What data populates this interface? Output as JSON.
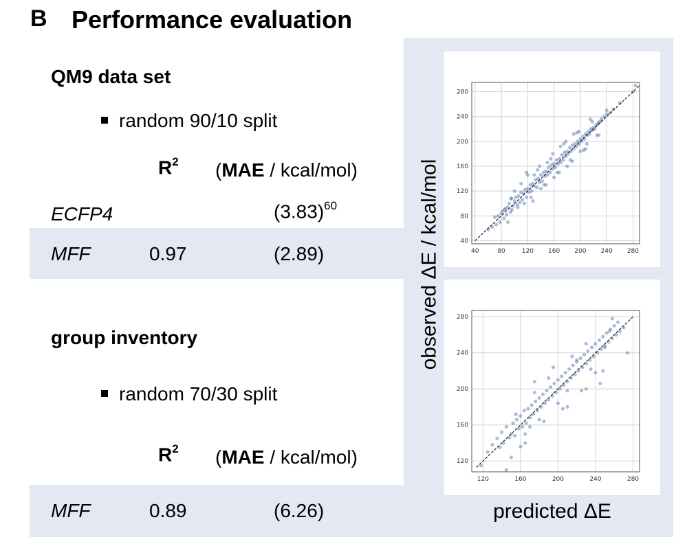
{
  "header": {
    "panel_letter": "B",
    "title": "Performance evaluation"
  },
  "sections": [
    {
      "title": "QM9 data set",
      "bullet": "random 90/10 split",
      "col_r2": "R",
      "col_r2_sup": "2",
      "col_mae_open": "(",
      "col_mae_bold": "MAE",
      "col_mae_rest": " / kcal/mol)",
      "rows": [
        {
          "method": "ECFP4",
          "r2": "",
          "mae": "(3.83)",
          "mae_sup": "60"
        },
        {
          "method": "MFF",
          "r2": "0.97",
          "mae": "(2.89)",
          "mae_sup": ""
        }
      ]
    },
    {
      "title": "group inventory",
      "bullet": "random 70/30 split",
      "col_r2": "R",
      "col_r2_sup": "2",
      "col_mae_open": "(",
      "col_mae_bold": "MAE",
      "col_mae_rest": " / kcal/mol)",
      "rows": [
        {
          "method": "MFF",
          "r2": "0.89",
          "mae": "(6.26)",
          "mae_sup": ""
        }
      ]
    }
  ],
  "axis_labels": {
    "ylabel": "observed ΔE / kcal/mol",
    "xlabel": "predicted ΔE"
  },
  "chart_data": [
    {
      "type": "scatter",
      "title": "",
      "xlabel": "predicted ΔE",
      "ylabel": "observed ΔE / kcal/mol",
      "xlim": [
        35,
        290
      ],
      "ylim": [
        35,
        295
      ],
      "xticks": [
        40,
        80,
        120,
        160,
        200,
        240,
        280
      ],
      "yticks": [
        40,
        80,
        120,
        160,
        200,
        240,
        280
      ],
      "grid": true,
      "point_color": "#4a6aa8",
      "reference_line": {
        "from": [
          40,
          40
        ],
        "to": [
          290,
          290
        ],
        "style": "dashed"
      },
      "series": [
        {
          "x": [
            60,
            66,
            70,
            72,
            75,
            78,
            80,
            82,
            84,
            86,
            88,
            90,
            92,
            94,
            95,
            96,
            98,
            100,
            102,
            104,
            106,
            108,
            110,
            112,
            114,
            116,
            118,
            120,
            122,
            124,
            126,
            128,
            130,
            132,
            134,
            136,
            138,
            140,
            142,
            144,
            146,
            148,
            150,
            152,
            154,
            156,
            158,
            160,
            162,
            164,
            166,
            168,
            170,
            172,
            174,
            176,
            178,
            180,
            182,
            184,
            186,
            188,
            190,
            192,
            194,
            196,
            198,
            200,
            202,
            204,
            206,
            208,
            210,
            212,
            214,
            216,
            218,
            220,
            222,
            224,
            226,
            228,
            230,
            232,
            236,
            240,
            245,
            250,
            260,
            280,
            284,
            120,
            135,
            140,
            150,
            160,
            170,
            180,
            190,
            200,
            210,
            115,
            110,
            100,
            125,
            130,
            145,
            155,
            165,
            175,
            185,
            195,
            205,
            215,
            225,
            90,
            95,
            105,
            85,
            118,
            128,
            138,
            148,
            158,
            168,
            178,
            188,
            198,
            208,
            218,
            228,
            240
          ],
          "y": [
            58,
            62,
            78,
            66,
            80,
            70,
            84,
            88,
            76,
            92,
            82,
            94,
            100,
            86,
            108,
            90,
            96,
            104,
            110,
            98,
            112,
            102,
            118,
            106,
            116,
            122,
            110,
            124,
            118,
            130,
            120,
            132,
            128,
            138,
            126,
            140,
            134,
            146,
            136,
            150,
            144,
            152,
            146,
            158,
            150,
            162,
            156,
            164,
            158,
            170,
            164,
            172,
            166,
            178,
            170,
            182,
            176,
            184,
            180,
            190,
            184,
            194,
            188,
            196,
            192,
            200,
            196,
            204,
            200,
            208,
            204,
            212,
            210,
            216,
            212,
            220,
            218,
            222,
            220,
            226,
            228,
            230,
            232,
            236,
            240,
            244,
            246,
            252,
            262,
            280,
            290,
            146,
            154,
            124,
            166,
            142,
            192,
            160,
            212,
            184,
            196,
            100,
            132,
            120,
            110,
            146,
            130,
            172,
            150,
            196,
            170,
            214,
            186,
            236,
            210,
            70,
            108,
            94,
            90,
            150,
            104,
            160,
            130,
            180,
            150,
            200,
            168,
            216,
            188,
            232,
            210,
            250
          ]
        }
      ]
    },
    {
      "type": "scatter",
      "title": "",
      "xlabel": "predicted ΔE",
      "ylabel": "observed ΔE / kcal/mol",
      "xlim": [
        108,
        287
      ],
      "ylim": [
        108,
        287
      ],
      "xticks": [
        120,
        160,
        200,
        240,
        280
      ],
      "yticks": [
        120,
        160,
        200,
        240,
        280
      ],
      "grid": true,
      "point_color": "#4a6aa8",
      "reference_line": {
        "from": [
          113,
          113
        ],
        "to": [
          280,
          280
        ],
        "style": "dashed"
      },
      "series": [
        {
          "x": [
            118,
            125,
            130,
            135,
            138,
            140,
            142,
            145,
            148,
            150,
            152,
            154,
            156,
            158,
            160,
            162,
            164,
            166,
            168,
            170,
            172,
            174,
            176,
            178,
            180,
            182,
            184,
            186,
            188,
            190,
            192,
            194,
            196,
            198,
            200,
            202,
            204,
            206,
            208,
            210,
            212,
            214,
            216,
            218,
            220,
            222,
            224,
            226,
            228,
            230,
            232,
            234,
            236,
            238,
            240,
            242,
            244,
            246,
            248,
            250,
            252,
            254,
            256,
            258,
            260,
            262,
            264,
            266,
            270,
            274,
            150,
            160,
            170,
            180,
            190,
            200,
            210,
            220,
            230,
            240,
            250,
            145,
            155,
            165,
            175,
            185,
            195,
            205,
            215,
            225,
            235,
            245,
            255,
            165,
            175,
            210,
            230,
            248,
            258
          ],
          "y": [
            115,
            130,
            138,
            145,
            135,
            152,
            140,
            158,
            146,
            150,
            162,
            148,
            166,
            156,
            170,
            158,
            176,
            162,
            178,
            168,
            182,
            172,
            186,
            176,
            190,
            180,
            194,
            184,
            198,
            188,
            202,
            192,
            206,
            196,
            210,
            200,
            214,
            204,
            218,
            208,
            222,
            212,
            226,
            216,
            230,
            220,
            234,
            224,
            238,
            228,
            242,
            232,
            246,
            236,
            250,
            240,
            254,
            244,
            258,
            248,
            262,
            252,
            266,
            256,
            270,
            260,
            274,
            264,
            268,
            240,
            124,
            136,
            158,
            166,
            212,
            184,
            198,
            232,
            200,
            218,
            246,
            110,
            172,
            150,
            196,
            164,
            224,
            178,
            236,
            198,
            222,
            206,
            264,
            140,
            208,
            180,
            250,
            220,
            278
          ]
        }
      ]
    }
  ]
}
